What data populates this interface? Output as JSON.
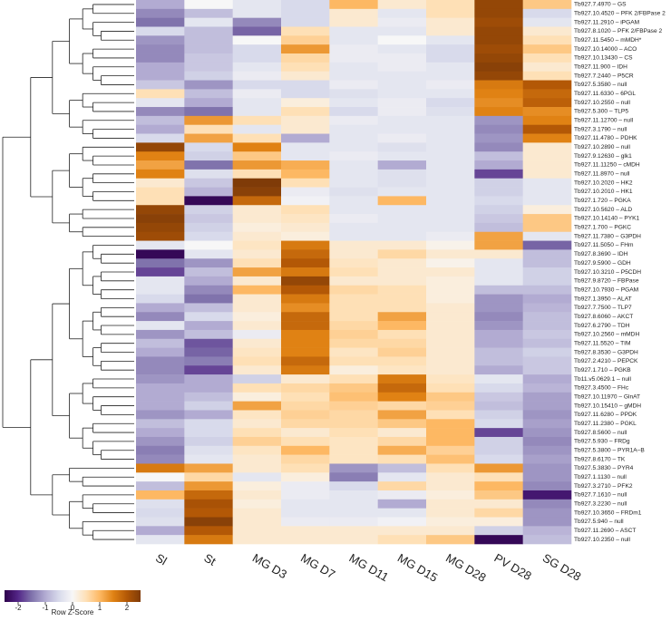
{
  "chart_data": {
    "type": "heatmap",
    "columns": [
      "Sl",
      "St",
      "MG D3",
      "MG D7",
      "MG D11",
      "MG D15",
      "MG D28",
      "PV D28",
      "SG D28"
    ],
    "rows": [
      "Tb927.7.4970 – GS",
      "Tb927.10.4520 – PFK 2/FBPase 2",
      "Tb927.11.2910 – iPGAM",
      "Tb927.8.1020 – PFK 2/FBPase 2",
      "Tb927.11.5450 – mMDH*",
      "Tb927.10.14000 – ACO",
      "Tb927.10.13430 – CS",
      "Tb927.11.900 – IDH",
      "Tb927.7.2440 – P5CR",
      "Tb927.5.3580 – null",
      "Tb927.11.6330 – 6PGL",
      "Tb927.10.2550 – null",
      "Tb927.5.300 – TLP5",
      "Tb927.11.12700 – null",
      "Tb927.3.1790 – null",
      "Tb927.11.4780 – PDHK",
      "Tb927.10.2890 – null",
      "Tb927.9.12630 – glk1",
      "Tb927.11.11250 – cMDH",
      "Tb927.11.8970 – null",
      "Tb927.10.2020 – HK2",
      "Tb927.10.2010 – HK1",
      "Tb927.1.720 – PGKA",
      "Tb927.10.5620 – ALD",
      "Tb927.10.14140 – PYK1",
      "Tb927.1.700 – PGKC",
      "Tb927.11.7380 – G3PDH",
      "Tb927.11.5050 – FHm",
      "Tb927.8.3690 – IDH",
      "Tb927.9.5900 – GDH",
      "Tb927.10.3210 – P5CDH",
      "Tb927.9.8720 – FBPase",
      "Tb927.10.7930 – PGAM",
      "Tb927.1.3950 – ALAT",
      "Tb927.7.7500 – TLP7",
      "Tb927.8.6060 – AKCT",
      "Tb927.6.2790 – TDH",
      "Tb927.10.2560 – mMDH",
      "Tb927.11.5520 – TIM",
      "Tb927.8.3530 – G3PDH",
      "Tb927.2.4210 – PEPCK",
      "Tb927.1.710 – PGKB",
      "Tb11.v5.0629.1 – null",
      "Tb927.3.4500 – FHc",
      "Tb927.10.11970 – GlnAT",
      "Tb927.10.15410 – gMDH",
      "Tb927.11.6280 – PPDK",
      "Tb927.11.2380 – PGKL",
      "Tb927.8.5600 – null",
      "Tb927.5.930 – FRDg",
      "Tb927.5.3800 – PYR1A–B",
      "Tb927.8.6170 – TK",
      "Tb927.5.3830 – PYR4",
      "Tb927.1.1130 – null",
      "Tb927.3.2710 – PFK2",
      "Tb927.7.1610 – null",
      "Tb927.3.2230 – null",
      "Tb927.10.3650 – FRDm1",
      "Tb927.5.940 – null",
      "Tb927.11.2690 – ASCT",
      "Tb927.10.2350 – null"
    ],
    "values": [
      [
        -1,
        0,
        -0.3,
        -0.5,
        1,
        0.3,
        0.5,
        2.3,
        0.8
      ],
      [
        -1.3,
        -0.8,
        -0.3,
        -0.5,
        0.3,
        -0.3,
        0.5,
        2.3,
        -0.5
      ],
      [
        -1.5,
        -0.3,
        -1.3,
        -0.5,
        0.3,
        -0.2,
        0.3,
        2.2,
        -0.3
      ],
      [
        -0.5,
        -0.8,
        -1.6,
        0.5,
        -0.3,
        -0.3,
        0.3,
        2.3,
        0.3
      ],
      [
        -1.2,
        -0.8,
        0,
        0.7,
        -0.3,
        0,
        -0.3,
        2.3,
        0.5
      ],
      [
        -1.3,
        -0.8,
        -0.5,
        1.3,
        -0.2,
        -0.3,
        -0.5,
        2.2,
        0.8
      ],
      [
        -1.3,
        -0.7,
        -0.5,
        0.6,
        -0.2,
        -0.2,
        -0.5,
        2.3,
        0.5
      ],
      [
        -1,
        -0.7,
        -0.3,
        0.5,
        -0.3,
        -0.2,
        -0.3,
        2.4,
        0.3
      ],
      [
        -1,
        -0.6,
        -0.2,
        0.3,
        -0.3,
        -0.3,
        -0.3,
        2.3,
        0.5
      ],
      [
        -0.7,
        -1.2,
        -0.5,
        -0.5,
        -0.2,
        -0.3,
        -0.2,
        1.6,
        2
      ],
      [
        0.5,
        -0.8,
        -0.2,
        -0.5,
        -0.4,
        -0.3,
        -0.3,
        1.5,
        1.8
      ],
      [
        -0.3,
        -1,
        -0.3,
        0.2,
        -0.3,
        -0.2,
        -0.5,
        1.4,
        1.9
      ],
      [
        -1.3,
        -1.5,
        -0.3,
        0.5,
        -0.5,
        -0.2,
        -0.4,
        1.5,
        1.4
      ],
      [
        -0.8,
        1.3,
        0.5,
        0.3,
        -0.2,
        -0.3,
        -0.3,
        -1.2,
        1.5
      ],
      [
        -1,
        0.5,
        -0.3,
        0.3,
        -0.3,
        -0.3,
        -0.3,
        -1.3,
        2
      ],
      [
        -0.5,
        1.2,
        0.5,
        -1,
        -0.3,
        -0.2,
        -0.3,
        -1.2,
        1.5
      ],
      [
        2.3,
        -0.5,
        1.5,
        -0.3,
        -0.3,
        -0.4,
        -0.3,
        -1.3,
        0.3
      ],
      [
        1.5,
        -0.6,
        0.8,
        -0.3,
        -0.2,
        -0.3,
        -0.3,
        -0.8,
        0.3
      ],
      [
        1.2,
        -1.5,
        1.3,
        1.1,
        -0.3,
        -1,
        -0.3,
        -1,
        0.3
      ],
      [
        1.5,
        -0.4,
        0.5,
        1,
        -0.3,
        -0.4,
        -0.3,
        -1.8,
        0.3
      ],
      [
        0.3,
        -0.7,
        2.5,
        0.5,
        -0.3,
        -0.4,
        -0.3,
        -0.6,
        -0.3
      ],
      [
        0.5,
        -0.9,
        2.4,
        -0.2,
        -0.4,
        -0.3,
        -0.3,
        -0.6,
        -0.3
      ],
      [
        0.5,
        -2.4,
        1.8,
        -0.1,
        -0.3,
        1,
        -0.3,
        -0.5,
        -0.3
      ],
      [
        2.3,
        -0.6,
        0.3,
        0.5,
        -0.3,
        -0.3,
        -0.3,
        -0.6,
        0.2
      ],
      [
        2.4,
        -0.7,
        0.3,
        0.4,
        -0.2,
        -0.3,
        -0.3,
        -0.7,
        0.8
      ],
      [
        2.3,
        -0.6,
        0.2,
        0.3,
        -0.3,
        -0.3,
        -0.3,
        -0.8,
        0.8
      ],
      [
        2.2,
        -0.5,
        0.3,
        0.2,
        -0.3,
        -0.3,
        -0.2,
        1.2,
        -0.3
      ],
      [
        -0.3,
        0,
        0.4,
        1.6,
        0.3,
        0.3,
        0.1,
        1.2,
        -1.6
      ],
      [
        -2.4,
        -0.3,
        0.3,
        1.8,
        0.3,
        0.6,
        0.3,
        0.3,
        -0.8
      ],
      [
        -1.5,
        -1.2,
        0.5,
        2,
        0.4,
        0.3,
        0.1,
        -0.3,
        -0.8
      ],
      [
        -1.8,
        -0.8,
        1.2,
        1.6,
        0.5,
        0.3,
        0.3,
        -0.3,
        -0.6
      ],
      [
        -0.3,
        -1,
        0.3,
        2.3,
        0.3,
        0.3,
        0.2,
        -0.3,
        -0.6
      ],
      [
        -0.3,
        -1.3,
        1,
        2,
        0.6,
        0.5,
        0.2,
        -0.8,
        -0.8
      ],
      [
        -0.5,
        -1.5,
        0.3,
        1.6,
        0.5,
        0.5,
        0.2,
        -1.2,
        -1
      ],
      [
        -1,
        -0.8,
        0.3,
        1.4,
        0.5,
        0.5,
        0.3,
        -1.2,
        -0.9
      ],
      [
        -1.3,
        -0.5,
        0.2,
        1.8,
        0.5,
        1.2,
        0.3,
        -1.3,
        -0.8
      ],
      [
        -0.3,
        -1,
        0.3,
        1.8,
        0.6,
        1,
        0.3,
        -1.2,
        -0.8
      ],
      [
        -1.2,
        -0.8,
        -0.2,
        1.5,
        0.7,
        0.5,
        0.3,
        -1,
        -0.7
      ],
      [
        -0.8,
        -1.7,
        0.3,
        1.5,
        0.6,
        0.6,
        0.3,
        -1,
        -0.8
      ],
      [
        -1,
        -1.6,
        0.4,
        1.5,
        0.4,
        0.7,
        0.3,
        -0.8,
        -0.6
      ],
      [
        -1.3,
        -1.4,
        0.5,
        1.8,
        0.5,
        0.5,
        0.3,
        -0.8,
        -0.7
      ],
      [
        -1.3,
        -1.8,
        0.3,
        1.6,
        0.2,
        0.4,
        0.3,
        -1,
        -0.7
      ],
      [
        -1.2,
        -1,
        -0.6,
        0.3,
        0.5,
        1.6,
        0.4,
        -0.3,
        -1
      ],
      [
        -1,
        -1,
        0.5,
        0.6,
        0.8,
        1.8,
        0.5,
        -0.5,
        -0.9
      ],
      [
        -1,
        -0.8,
        0.2,
        0.5,
        0.9,
        1.5,
        0.8,
        -0.7,
        -1.1
      ],
      [
        -1,
        -0.6,
        1.2,
        0.6,
        0.7,
        0.6,
        0.7,
        -0.8,
        -1.1
      ],
      [
        -1.2,
        -1,
        0.4,
        0.7,
        0.6,
        1.2,
        0.5,
        -0.6,
        -1.2
      ],
      [
        -0.8,
        -0.5,
        0.3,
        0.6,
        0.6,
        0.8,
        1,
        -0.5,
        -1.1
      ],
      [
        -1,
        -0.5,
        0.5,
        0.3,
        0.5,
        0.3,
        1,
        -1.8,
        -1.2
      ],
      [
        -1.2,
        -0.6,
        0.7,
        0.5,
        0.4,
        0.6,
        1,
        -0.6,
        -1.3
      ],
      [
        -1.4,
        -0.4,
        0.4,
        1,
        0.4,
        1.1,
        0.7,
        -0.6,
        -1.2
      ],
      [
        -1.3,
        -0.3,
        0.3,
        0.6,
        0.4,
        0.5,
        0.9,
        -0.5,
        -1.1
      ],
      [
        1.6,
        1.2,
        0.3,
        0.5,
        -1.2,
        -0.8,
        0.5,
        1.3,
        -1.2
      ],
      [
        0,
        0.6,
        -0.3,
        0.2,
        -1.4,
        -0.3,
        0.3,
        0.5,
        -1.2
      ],
      [
        -0.8,
        1.3,
        0.2,
        -0.2,
        -0.5,
        0.6,
        0.3,
        1,
        -1.3
      ],
      [
        1,
        1.8,
        0.3,
        -0.2,
        -0.3,
        -0.2,
        0.2,
        0.8,
        -2.2
      ],
      [
        -0.4,
        2.1,
        0.2,
        -0.3,
        -0.3,
        -1,
        0.3,
        0.3,
        -1.3
      ],
      [
        -0.5,
        2,
        0.3,
        -0.3,
        -0.3,
        -0.3,
        0.3,
        0.6,
        -1.2
      ],
      [
        -0.4,
        2.4,
        0.3,
        -0.2,
        -0.2,
        -0.1,
        0.2,
        0.2,
        -1.2
      ],
      [
        -1,
        2,
        0.3,
        0.3,
        0.3,
        0.3,
        0.3,
        -0.6,
        -0.9
      ],
      [
        -0.3,
        1.6,
        0.3,
        0.3,
        0.3,
        0.5,
        0.8,
        -2.4,
        -0.8
      ]
    ],
    "zlim": [
      -2.5,
      2.5
    ],
    "zticks": [
      -2,
      -1,
      0,
      1,
      2
    ],
    "legend_title": "Row Z-Score",
    "colors": [
      "#2d004b",
      "#542788",
      "#8073ac",
      "#b2abd2",
      "#d8daeb",
      "#f7f7f7",
      "#fee0b6",
      "#fdb863",
      "#e08214",
      "#b35806",
      "#7f3b08"
    ]
  }
}
